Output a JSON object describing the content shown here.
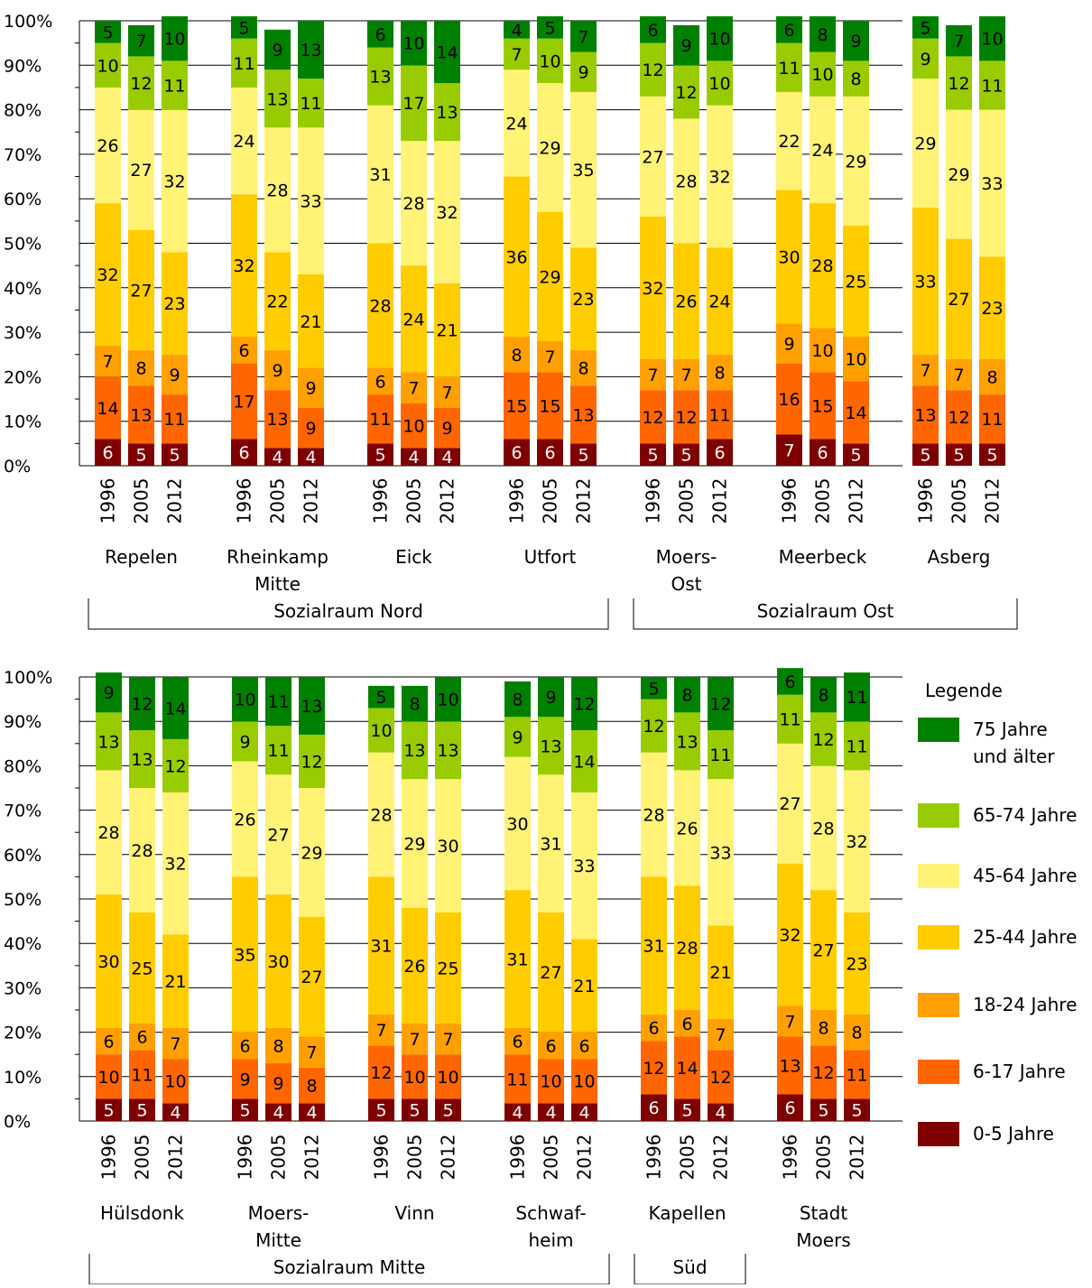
{
  "colors": {
    "age_0_5": "#7f0000",
    "age_6_17": "#ff6600",
    "age_18_24": "#ffa000",
    "age_25_44": "#ffcc00",
    "age_45_64": "#fff275",
    "age_65_74": "#99cc00",
    "age_75_plus": "#008000"
  },
  "legend": {
    "title": "Legende",
    "items": [
      {
        "key": "age_75_plus",
        "lines": [
          "75 Jahre",
          "und älter"
        ]
      },
      {
        "key": "age_65_74",
        "lines": [
          "65-74 Jahre"
        ]
      },
      {
        "key": "age_45_64",
        "lines": [
          "45-64 Jahre"
        ]
      },
      {
        "key": "age_25_44",
        "lines": [
          "25-44 Jahre"
        ]
      },
      {
        "key": "age_18_24",
        "lines": [
          "18-24 Jahre"
        ]
      },
      {
        "key": "age_6_17",
        "lines": [
          "6-17 Jahre"
        ]
      },
      {
        "key": "age_0_5",
        "lines": [
          "0-5 Jahre"
        ]
      }
    ]
  },
  "chart_data": [
    {
      "type": "bar",
      "stacked": true,
      "percent_stacked": true,
      "ylim": [
        0,
        100
      ],
      "y_ticks": [
        "0%",
        "10%",
        "20%",
        "30%",
        "40%",
        "50%",
        "60%",
        "70%",
        "80%",
        "90%",
        "100%"
      ],
      "grid": true,
      "series_order": [
        "age_0_5",
        "age_6_17",
        "age_18_24",
        "age_25_44",
        "age_45_64",
        "age_65_74",
        "age_75_plus"
      ],
      "districts": [
        {
          "name": [
            "Repelen"
          ],
          "bars": [
            {
              "year": "1996",
              "values": [
                6,
                14,
                7,
                32,
                26,
                10,
                5
              ]
            },
            {
              "year": "2005",
              "values": [
                5,
                13,
                8,
                27,
                27,
                12,
                7
              ]
            },
            {
              "year": "2012",
              "values": [
                5,
                11,
                9,
                23,
                32,
                11,
                10
              ]
            }
          ]
        },
        {
          "name": [
            "Rheinkamp",
            "Mitte"
          ],
          "bars": [
            {
              "year": "1996",
              "values": [
                6,
                17,
                6,
                32,
                24,
                11,
                5
              ]
            },
            {
              "year": "2005",
              "values": [
                4,
                13,
                9,
                22,
                28,
                13,
                9
              ]
            },
            {
              "year": "2012",
              "values": [
                4,
                9,
                9,
                21,
                33,
                11,
                13
              ]
            }
          ]
        },
        {
          "name": [
            "Eick"
          ],
          "bars": [
            {
              "year": "1996",
              "values": [
                5,
                11,
                6,
                28,
                31,
                13,
                6
              ]
            },
            {
              "year": "2005",
              "values": [
                4,
                10,
                7,
                24,
                28,
                17,
                10
              ]
            },
            {
              "year": "2012",
              "values": [
                4,
                9,
                7,
                21,
                32,
                13,
                14
              ]
            }
          ]
        },
        {
          "name": [
            "Utfort"
          ],
          "bars": [
            {
              "year": "1996",
              "values": [
                6,
                15,
                8,
                36,
                24,
                7,
                4
              ]
            },
            {
              "year": "2005",
              "values": [
                6,
                15,
                7,
                29,
                29,
                10,
                5
              ]
            },
            {
              "year": "2012",
              "values": [
                5,
                13,
                8,
                23,
                35,
                9,
                7
              ]
            }
          ]
        },
        {
          "name": [
            "Moers-",
            "Ost"
          ],
          "bars": [
            {
              "year": "1996",
              "values": [
                5,
                12,
                7,
                32,
                27,
                12,
                6
              ]
            },
            {
              "year": "2005",
              "values": [
                5,
                12,
                7,
                26,
                28,
                12,
                9
              ]
            },
            {
              "year": "2012",
              "values": [
                6,
                11,
                8,
                24,
                32,
                10,
                10
              ]
            }
          ]
        },
        {
          "name": [
            "Meerbeck"
          ],
          "bars": [
            {
              "year": "1996",
              "values": [
                7,
                16,
                9,
                30,
                22,
                11,
                6
              ]
            },
            {
              "year": "2005",
              "values": [
                6,
                15,
                10,
                28,
                24,
                10,
                8
              ]
            },
            {
              "year": "2012",
              "values": [
                5,
                14,
                10,
                25,
                29,
                8,
                9
              ]
            }
          ]
        },
        {
          "name": [
            "Asberg"
          ],
          "bars": [
            {
              "year": "1996",
              "values": [
                5,
                13,
                7,
                33,
                29,
                9,
                5
              ]
            },
            {
              "year": "2005",
              "values": [
                5,
                12,
                7,
                27,
                29,
                12,
                7
              ]
            },
            {
              "year": "2012",
              "values": [
                5,
                11,
                8,
                23,
                33,
                11,
                10
              ]
            }
          ]
        }
      ],
      "groups": [
        {
          "label": "Sozialraum Nord",
          "from": 0,
          "to": 3
        },
        {
          "label": "Sozialraum Ost",
          "from": 4,
          "to": 6
        }
      ]
    },
    {
      "type": "bar",
      "stacked": true,
      "percent_stacked": true,
      "ylim": [
        0,
        100
      ],
      "y_ticks": [
        "0%",
        "10%",
        "20%",
        "30%",
        "40%",
        "50%",
        "60%",
        "70%",
        "80%",
        "90%",
        "100%"
      ],
      "grid": true,
      "series_order": [
        "age_0_5",
        "age_6_17",
        "age_18_24",
        "age_25_44",
        "age_45_64",
        "age_65_74",
        "age_75_plus"
      ],
      "districts": [
        {
          "name": [
            "Hülsdonk"
          ],
          "bars": [
            {
              "year": "1996",
              "values": [
                5,
                10,
                6,
                30,
                28,
                13,
                9
              ]
            },
            {
              "year": "2005",
              "values": [
                5,
                11,
                6,
                25,
                28,
                13,
                12
              ]
            },
            {
              "year": "2012",
              "values": [
                4,
                10,
                7,
                21,
                32,
                12,
                14
              ]
            }
          ]
        },
        {
          "name": [
            "Moers-",
            "Mitte"
          ],
          "bars": [
            {
              "year": "1996",
              "values": [
                5,
                9,
                6,
                35,
                26,
                9,
                10
              ]
            },
            {
              "year": "2005",
              "values": [
                4,
                9,
                8,
                30,
                27,
                11,
                11
              ]
            },
            {
              "year": "2012",
              "values": [
                4,
                8,
                7,
                27,
                29,
                12,
                13
              ]
            }
          ]
        },
        {
          "name": [
            "Vinn"
          ],
          "bars": [
            {
              "year": "1996",
              "values": [
                5,
                12,
                7,
                31,
                28,
                10,
                5
              ]
            },
            {
              "year": "2005",
              "values": [
                5,
                10,
                7,
                26,
                29,
                13,
                8
              ]
            },
            {
              "year": "2012",
              "values": [
                5,
                10,
                7,
                25,
                30,
                13,
                10
              ]
            }
          ]
        },
        {
          "name": [
            "Schwaf-",
            "heim"
          ],
          "bars": [
            {
              "year": "1996",
              "values": [
                4,
                11,
                6,
                31,
                30,
                9,
                8
              ]
            },
            {
              "year": "2005",
              "values": [
                4,
                10,
                6,
                27,
                31,
                13,
                9
              ]
            },
            {
              "year": "2012",
              "values": [
                4,
                10,
                6,
                21,
                33,
                14,
                12
              ]
            }
          ]
        },
        {
          "name": [
            "Kapellen"
          ],
          "bars": [
            {
              "year": "1996",
              "values": [
                6,
                12,
                6,
                31,
                28,
                12,
                5
              ]
            },
            {
              "year": "2005",
              "values": [
                5,
                14,
                6,
                28,
                26,
                13,
                8
              ]
            },
            {
              "year": "2012",
              "values": [
                4,
                12,
                7,
                21,
                33,
                11,
                12
              ]
            }
          ]
        },
        {
          "name": [
            "Stadt",
            "Moers"
          ],
          "bars": [
            {
              "year": "1996",
              "values": [
                6,
                13,
                7,
                32,
                27,
                11,
                6
              ]
            },
            {
              "year": "2005",
              "values": [
                5,
                12,
                8,
                27,
                28,
                12,
                8
              ]
            },
            {
              "year": "2012",
              "values": [
                5,
                11,
                8,
                23,
                32,
                11,
                11
              ]
            }
          ]
        }
      ],
      "groups": [
        {
          "label": "Sozialraum Mitte",
          "from": 0,
          "to": 3
        },
        {
          "label": "Süd",
          "from": 4,
          "to": 4
        }
      ]
    }
  ]
}
